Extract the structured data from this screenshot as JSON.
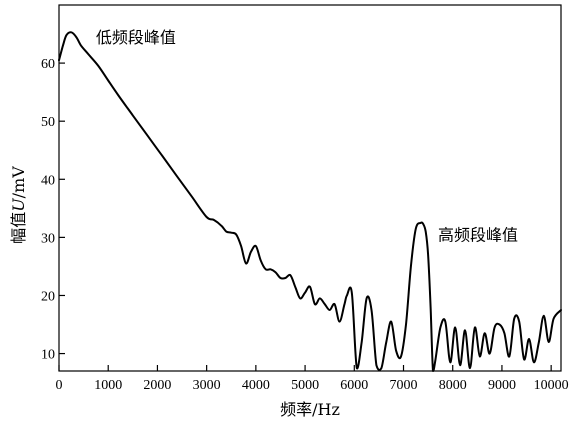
{
  "chart_data": {
    "type": "line",
    "title": "",
    "xlabel": "频率/Hz",
    "ylabel_prefix": "幅值",
    "ylabel_var": "U",
    "ylabel_suffix": "/mV",
    "xlim": [
      0,
      10200
    ],
    "ylim": [
      7,
      70
    ],
    "xticks": [
      0,
      1000,
      2000,
      3000,
      4000,
      5000,
      6000,
      7000,
      8000,
      9000,
      10000
    ],
    "yticks": [
      10,
      20,
      30,
      40,
      50,
      60
    ],
    "grid": false,
    "line_color": "#000000",
    "annotations": [
      {
        "text": "低频段峰值",
        "x": 750,
        "y": 63.5
      },
      {
        "text": "高频段峰值",
        "x": 7700,
        "y": 29.5
      }
    ],
    "series": [
      {
        "x": [
          0,
          80,
          150,
          250,
          350,
          450,
          600,
          800,
          1000,
          1200,
          1500,
          1800,
          2100,
          2400,
          2700,
          3000,
          3150,
          3300,
          3400,
          3500,
          3600,
          3700,
          3800,
          3900,
          4000,
          4100,
          4200,
          4300,
          4400,
          4500,
          4600,
          4700,
          4800,
          4900,
          5000,
          5100,
          5200,
          5300,
          5400,
          5500,
          5600,
          5700,
          5800,
          5850,
          5950,
          6050,
          6150,
          6250,
          6350,
          6450,
          6550,
          6650,
          6750,
          6850,
          6950,
          7050,
          7150,
          7250,
          7350,
          7400,
          7450,
          7500,
          7550,
          7600,
          7650,
          7750,
          7850,
          7950,
          8050,
          8150,
          8250,
          8350,
          8450,
          8550,
          8650,
          8750,
          8850,
          8950,
          9050,
          9150,
          9250,
          9350,
          9450,
          9550,
          9650,
          9750,
          9850,
          9950,
          10050,
          10200
        ],
        "y": [
          60.5,
          63.0,
          64.8,
          65.3,
          64.5,
          63.0,
          61.5,
          59.5,
          57.0,
          54.5,
          51.0,
          47.5,
          44.0,
          40.5,
          37.0,
          33.5,
          33.0,
          32.0,
          31.0,
          30.8,
          30.5,
          28.5,
          25.5,
          27.5,
          28.5,
          26.0,
          24.5,
          24.5,
          24.0,
          23.0,
          23.0,
          23.5,
          21.5,
          19.5,
          20.5,
          21.5,
          18.5,
          19.5,
          18.5,
          17.5,
          18.5,
          15.5,
          18.5,
          20.0,
          20.5,
          7.5,
          12.0,
          19.5,
          17.5,
          8.0,
          7.5,
          12.0,
          15.5,
          10.5,
          9.5,
          15.0,
          25.0,
          31.5,
          32.5,
          32.3,
          31.0,
          27.0,
          18.0,
          7.0,
          9.0,
          14.5,
          15.5,
          8.5,
          14.5,
          8.0,
          14.0,
          7.5,
          14.5,
          9.5,
          13.5,
          10.0,
          14.5,
          15.0,
          13.5,
          9.5,
          16.0,
          15.5,
          9.0,
          12.5,
          8.5,
          12.0,
          16.5,
          12.0,
          16.0,
          17.5
        ]
      }
    ]
  }
}
